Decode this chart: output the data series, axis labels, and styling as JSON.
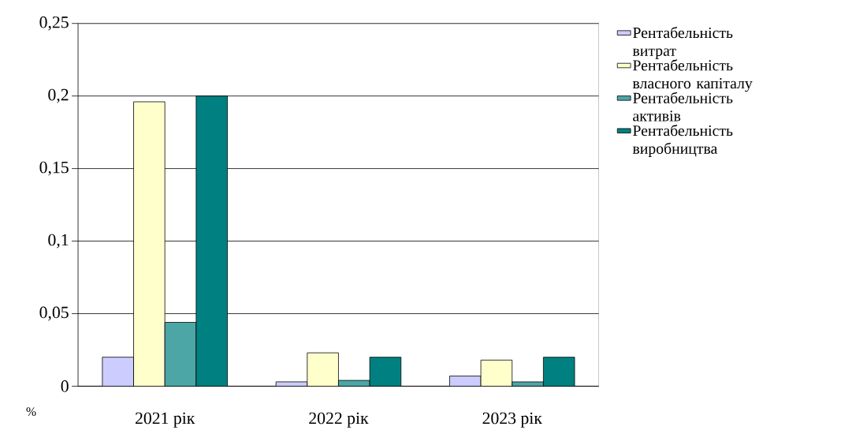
{
  "chart_data": {
    "type": "bar",
    "ylabel": "%",
    "categories": [
      "2021 рік",
      "2022 рік",
      "2023 рік"
    ],
    "series": [
      {
        "name": "Рентабельність витрат",
        "color": "#ccccff",
        "values": [
          0.02,
          0.003,
          0.007
        ]
      },
      {
        "name": "Рентабельність власного капіталу",
        "color": "#ffffcc",
        "values": [
          0.196,
          0.023,
          0.018
        ]
      },
      {
        "name": "Рентабельність активів",
        "color": "#4da6a6",
        "values": [
          0.044,
          0.004,
          0.003
        ]
      },
      {
        "name": "Рентабельність виробництва",
        "color": "#008080",
        "values": [
          0.2,
          0.02,
          0.02
        ]
      }
    ],
    "ylim": [
      0,
      0.25
    ],
    "yticks": [
      0,
      {
        "value": 0.05,
        "label": "0,05"
      },
      {
        "value": 0.1,
        "label": "0,1"
      },
      {
        "value": 0.15,
        "label": "0,15"
      },
      {
        "value": 0.2,
        "label": "0,2"
      },
      {
        "value": 0.25,
        "label": "0,25"
      }
    ],
    "grid": "y",
    "legend": "right"
  }
}
